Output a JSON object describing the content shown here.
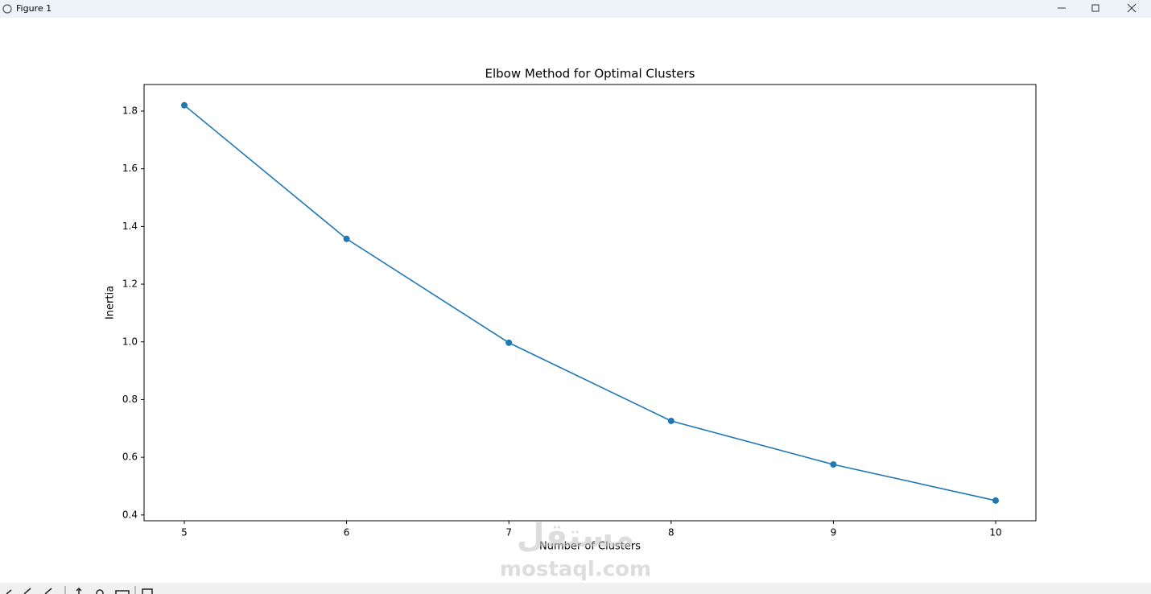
{
  "window": {
    "title": "Figure 1"
  },
  "watermark": {
    "logo": "مستقل",
    "url": "mostaql.com"
  },
  "chart_data": {
    "type": "line",
    "title": "Elbow Method for Optimal Clusters",
    "x_label": "Number of Clusters",
    "y_label": "Inertia",
    "x": [
      5,
      6,
      7,
      8,
      9,
      10
    ],
    "values": [
      1.82,
      1.357,
      0.997,
      0.726,
      0.575,
      0.45
    ],
    "color": "#1f77b4",
    "marker": true,
    "xlim": [
      4.752,
      10.248
    ],
    "xticks": [
      5,
      6,
      7,
      8,
      9,
      10
    ],
    "ylim": [
      0.38,
      1.892
    ],
    "yticks": [
      0.4,
      0.6,
      0.8,
      {
        "value": 1,
        "label": "1.0"
      },
      1.2,
      1.4,
      1.6,
      1.8
    ],
    "grid": false
  }
}
